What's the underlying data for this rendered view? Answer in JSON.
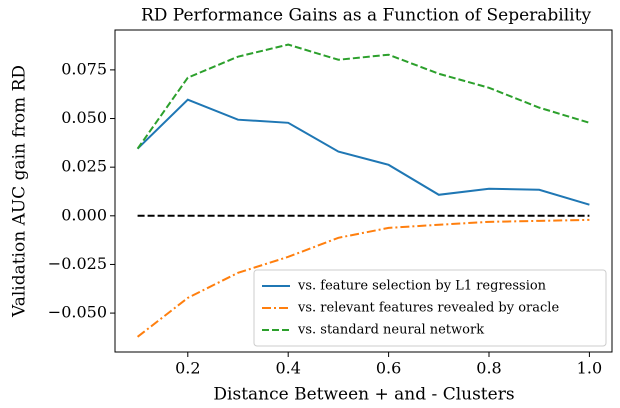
{
  "chart_data": {
    "type": "line",
    "title": "RD Performance Gains as a Function of Seperability",
    "xlabel": "Distance Between + and - Clusters",
    "ylabel": "Validation AUC gain from RD",
    "x": [
      0.1,
      0.2,
      0.3,
      0.4,
      0.5,
      0.6,
      0.7,
      0.8,
      0.9,
      1.0
    ],
    "series": [
      {
        "name": "vs. feature selection by L1 regression",
        "color": "#1f77b4",
        "dash": "solid",
        "values": [
          0.0345,
          0.0597,
          0.0494,
          0.0478,
          0.033,
          0.0262,
          0.0108,
          0.0139,
          0.0134,
          0.0057
        ]
      },
      {
        "name": "vs. relevant features revealed by oracle",
        "color": "#ff7f0e",
        "dash": "dashdot",
        "values": [
          -0.0622,
          -0.0422,
          -0.0293,
          -0.0211,
          -0.0113,
          -0.0062,
          -0.0046,
          -0.0031,
          -0.0026,
          -0.0021
        ]
      },
      {
        "name": "vs. standard neural network",
        "color": "#2ca02c",
        "dash": "dashed",
        "values": [
          0.0345,
          0.071,
          0.0818,
          0.088,
          0.0802,
          0.0828,
          0.073,
          0.0658,
          0.0556,
          0.0478
        ]
      }
    ],
    "hline": 0,
    "hline_color": "#000000",
    "xlim": [
      0.055,
      1.045
    ],
    "ylim": [
      -0.07,
      0.0955
    ],
    "xticks": [
      0.2,
      0.4,
      0.6,
      0.8,
      {
        "value": 1,
        "label": "1.0"
      }
    ],
    "yticks": [
      {
        "value": -0.05,
        "label": "−0.050"
      },
      {
        "value": -0.025,
        "label": "−0.025"
      },
      {
        "value": 0,
        "label": "0.000"
      },
      {
        "value": 0.025,
        "label": "0.025"
      },
      {
        "value": 0.05,
        "label": "0.050"
      },
      0.075
    ],
    "grid": false,
    "legend": "lower right"
  }
}
